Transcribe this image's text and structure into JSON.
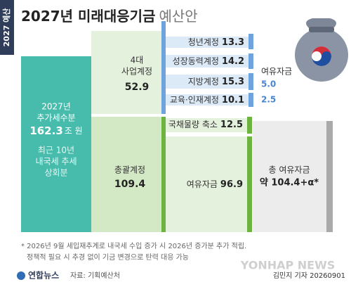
{
  "tag": "2027 예산",
  "title": {
    "main": "2027년 미래대응기금",
    "sub": "예산안"
  },
  "source": {
    "year": "2027년",
    "label": "추가세수분",
    "amount": "162.3",
    "unit": "조 원",
    "note": [
      "최근 10년",
      "내국세 추세",
      "상회분"
    ]
  },
  "business": {
    "label": [
      "4대",
      "사업계정"
    ],
    "amount": "52.9",
    "items": [
      {
        "label": "청년계정",
        "amount": "13.3"
      },
      {
        "label": "성장동력계정",
        "amount": "14.2"
      },
      {
        "label": "지방계정",
        "amount": "15.3"
      },
      {
        "label": "교육·인재계정",
        "amount": "10.1"
      }
    ],
    "reserve": {
      "label": "여유자금",
      "amounts": [
        "5.0",
        "2.5"
      ]
    }
  },
  "general": {
    "label": "총괄계정",
    "amount": "109.4",
    "items": [
      {
        "label": "국채물량 축소",
        "amount": "12.5"
      },
      {
        "label": "여유자금",
        "amount": "96.9"
      }
    ]
  },
  "total": {
    "label": "총 여유자금",
    "amount": "약 104.4+α*"
  },
  "footnote": [
    "* 2026년 9월 세입재추계로 내국세 수입 증가 시 2026년 증가분 추가 적립.",
    "정책적 필요 시 추경 없이 기금 변경으로 탄력 대응 가능"
  ],
  "footer": {
    "brand": "연합뉴스",
    "source": "자료: 기획예산처",
    "credit": "김민지 기자 20260901",
    "watermark": "YONHAP NEWS"
  }
}
